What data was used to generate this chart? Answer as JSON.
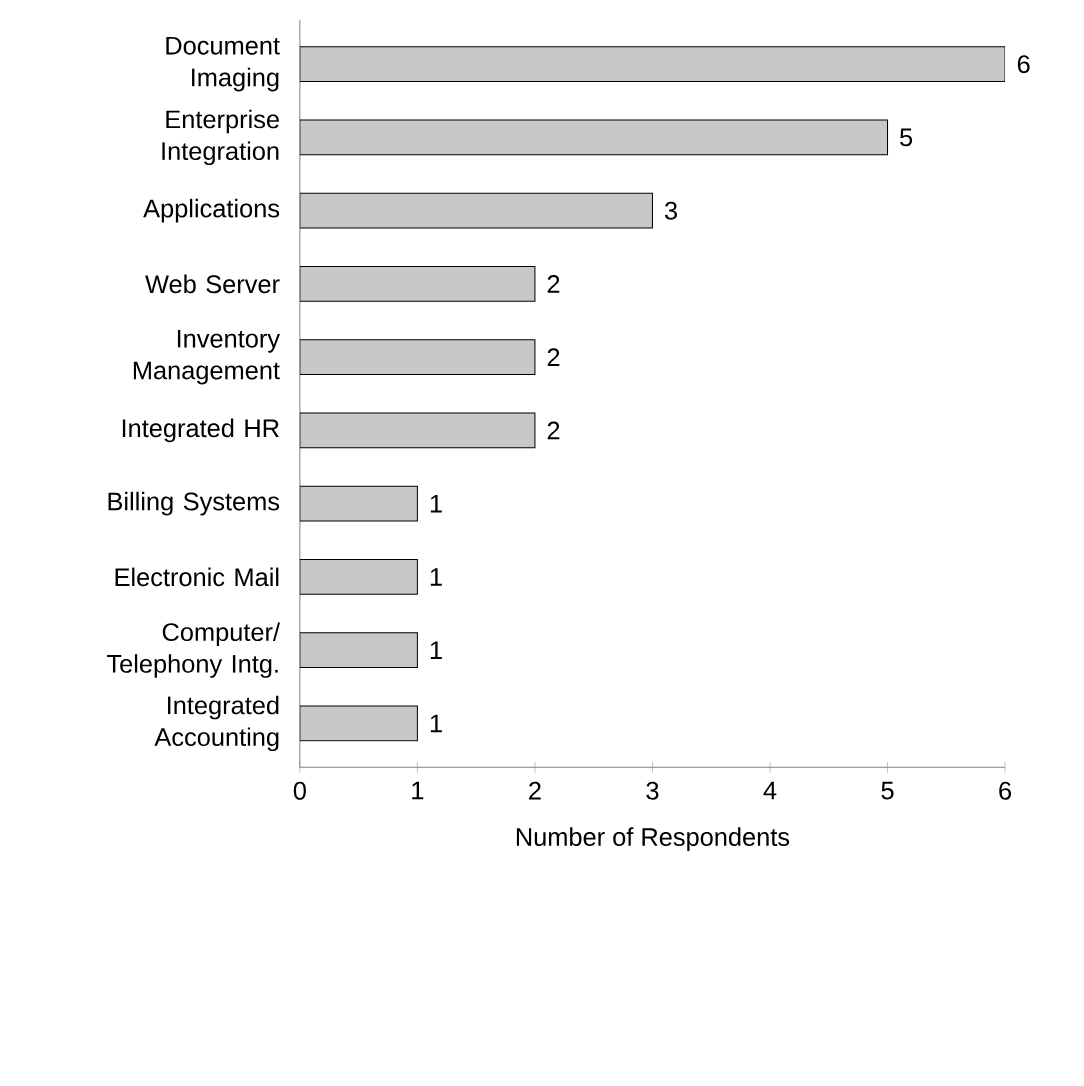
{
  "chart_data": {
    "type": "bar",
    "orientation": "horizontal",
    "categories": [
      "Document Imaging",
      "Enterprise Integration",
      "Applications",
      "Web Server",
      "Inventory Management",
      "Integrated HR",
      "Billing Systems",
      "Electronic Mail",
      "Computer/ Telephony Intg.",
      "Integrated Accounting"
    ],
    "values": [
      6,
      5,
      3,
      2,
      2,
      2,
      1,
      1,
      1,
      1
    ],
    "color": "#c8c8c8",
    "xlim": [
      0,
      6
    ],
    "xticks": [
      0,
      1,
      2,
      3,
      4,
      5,
      6
    ],
    "xlabel": "Number of Respondents",
    "data_labels": true
  }
}
